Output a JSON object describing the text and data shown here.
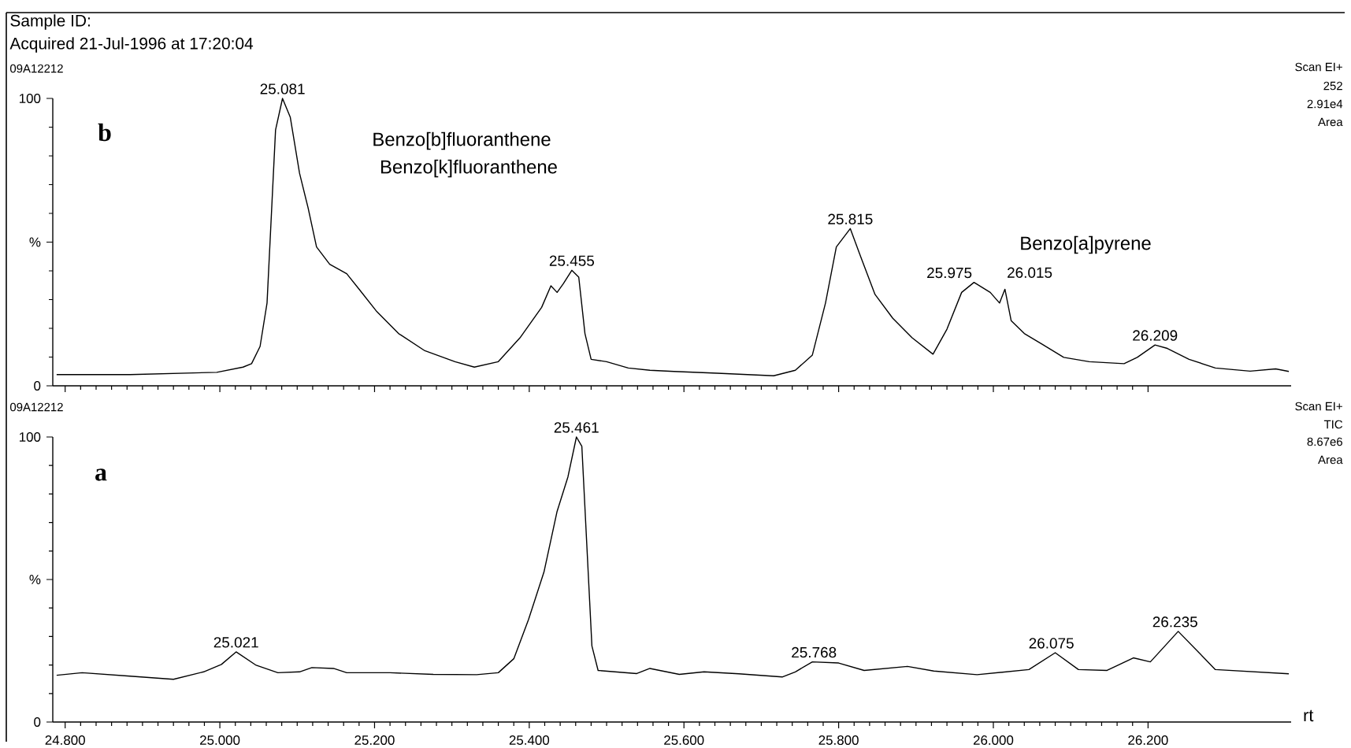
{
  "chart_data": [
    {
      "type": "line",
      "title": "09A12212",
      "annotations": [
        "Sample ID:",
        "Acquired 21-Jul-1996 at 17:20:04",
        "b",
        "Benzo[b]fluoranthene",
        "Benzo[k]fluoranthene",
        "Benzo[a]pyrene",
        "Scan EI+",
        "252",
        "2.91e4",
        "Area",
        {
          "text": "25.081",
          "x": 25.081,
          "y": 100
        },
        {
          "text": "25.455",
          "x": 25.455,
          "y": 40.2
        },
        {
          "text": "25.815",
          "x": 25.815,
          "y": 54.7
        },
        {
          "text": "25.975",
          "x": 25.975,
          "y": 36.0
        },
        {
          "text": "26.015",
          "x": 26.015,
          "y": 33.6
        },
        {
          "text": "26.209",
          "x": 26.209,
          "y": 14.2
        }
      ],
      "series": [
        {
          "color": "#000000",
          "x": [
            24.789,
            24.884,
            24.996,
            25.03,
            25.041,
            25.052,
            25.061,
            25.072,
            25.081,
            25.091,
            25.103,
            25.114,
            25.125,
            25.142,
            25.164,
            25.181,
            25.203,
            25.231,
            25.265,
            25.304,
            25.329,
            25.36,
            25.388,
            25.416,
            25.428,
            25.436,
            25.444,
            25.455,
            25.464,
            25.472,
            25.48,
            25.5,
            25.528,
            25.556,
            25.587,
            25.643,
            25.716,
            25.744,
            25.766,
            25.783,
            25.797,
            25.815,
            25.828,
            25.847,
            25.87,
            25.895,
            25.922,
            25.94,
            25.959,
            25.975,
            25.996,
            26.008,
            26.015,
            26.023,
            26.04,
            26.063,
            26.091,
            26.124,
            26.169,
            26.186,
            26.209,
            26.225,
            26.253,
            26.287,
            26.332,
            26.365,
            26.382
          ],
          "values": [
            3.9,
            3.9,
            4.7,
            6.5,
            7.7,
            13.7,
            28.8,
            89,
            100,
            93.5,
            74,
            62,
            48.3,
            42.3,
            39,
            33.3,
            25.8,
            18.2,
            12.2,
            8.4,
            6.5,
            8.4,
            16.7,
            27.3,
            34.8,
            32.5,
            35.5,
            40.2,
            37.8,
            18.2,
            9.2,
            8.4,
            6.2,
            5.4,
            5.0,
            4.4,
            3.5,
            5.4,
            10.7,
            28.8,
            48.3,
            54.7,
            45.3,
            31.8,
            23.5,
            16.7,
            11.0,
            19.7,
            32.5,
            36.0,
            32.5,
            28.8,
            33.6,
            22.7,
            18.2,
            14.5,
            9.9,
            8.4,
            7.7,
            9.9,
            14.2,
            13.0,
            9.2,
            6.2,
            5.1,
            5.9,
            5.0
          ]
        }
      ],
      "xlim": [
        24.784,
        26.385
      ],
      "ylim": [
        0,
        100
      ],
      "xticks": [
        {
          "value": 24.8,
          "label": null
        },
        {
          "value": 25.0,
          "label": null
        },
        {
          "value": 25.2,
          "label": null
        },
        {
          "value": 25.4,
          "label": null
        },
        {
          "value": 25.6,
          "label": null
        },
        {
          "value": 25.8,
          "label": null
        },
        {
          "value": 26.0,
          "label": null
        },
        {
          "value": 26.2,
          "label": null
        }
      ],
      "yticks": [
        0,
        {
          "value": 50,
          "label": "%"
        },
        100
      ],
      "tick_labels": "y",
      "marker": "none",
      "line_style": "solid"
    },
    {
      "type": "line",
      "title": "09A12212",
      "xlabel": "rt",
      "annotations": [
        "a",
        "Scan EI+",
        "TIC",
        "8.67e6",
        "Area",
        {
          "text": "25.021",
          "x": 25.021,
          "y": 24.6
        },
        {
          "text": "25.461",
          "x": 25.461,
          "y": 100
        },
        {
          "text": "25.768",
          "x": 25.768,
          "y": 21.1
        },
        {
          "text": "26.075",
          "x": 26.075,
          "y": 24.3
        },
        {
          "text": "26.235",
          "x": 26.235,
          "y": 31.8
        }
      ],
      "series": [
        {
          "color": "#000000",
          "x": [
            24.789,
            24.822,
            24.884,
            24.94,
            24.979,
            25.002,
            25.021,
            25.047,
            25.075,
            25.103,
            25.119,
            25.147,
            25.164,
            25.22,
            25.276,
            25.332,
            25.36,
            25.38,
            25.399,
            25.419,
            25.436,
            25.45,
            25.461,
            25.468,
            25.481,
            25.489,
            25.539,
            25.556,
            25.594,
            25.626,
            25.671,
            25.727,
            25.744,
            25.766,
            25.8,
            25.833,
            25.889,
            25.923,
            25.979,
            26.046,
            26.08,
            26.11,
            26.147,
            26.181,
            26.203,
            26.239,
            26.287,
            26.382
          ],
          "values": [
            16.4,
            17.3,
            16.1,
            15.0,
            17.6,
            20.2,
            24.6,
            19.9,
            17.3,
            17.6,
            19.1,
            18.8,
            17.3,
            17.3,
            16.7,
            16.6,
            17.3,
            22.2,
            35.9,
            52.6,
            73.9,
            86.0,
            100,
            96.7,
            26.7,
            18.1,
            17.0,
            18.8,
            16.7,
            17.6,
            16.9,
            15.8,
            17.6,
            21.1,
            20.7,
            18.1,
            19.5,
            17.9,
            16.6,
            18.4,
            24.3,
            18.4,
            18.1,
            22.5,
            21.1,
            31.8,
            18.4,
            16.9
          ]
        }
      ],
      "xlim": [
        24.784,
        26.385
      ],
      "ylim": [
        0,
        100
      ],
      "xticks": [
        {
          "value": 24.8,
          "label": "24.800"
        },
        {
          "value": 25.0,
          "label": "25.000"
        },
        {
          "value": 25.2,
          "label": "25.200"
        },
        {
          "value": 25.4,
          "label": "25.400"
        },
        {
          "value": 25.6,
          "label": "25.600"
        },
        {
          "value": 25.8,
          "label": "25.800"
        },
        {
          "value": 26.0,
          "label": "26.000"
        },
        {
          "value": 26.2,
          "label": "26.200"
        }
      ],
      "yticks": [
        0,
        {
          "value": 50,
          "label": "%"
        },
        100
      ],
      "marker": "none",
      "line_style": "solid"
    }
  ]
}
